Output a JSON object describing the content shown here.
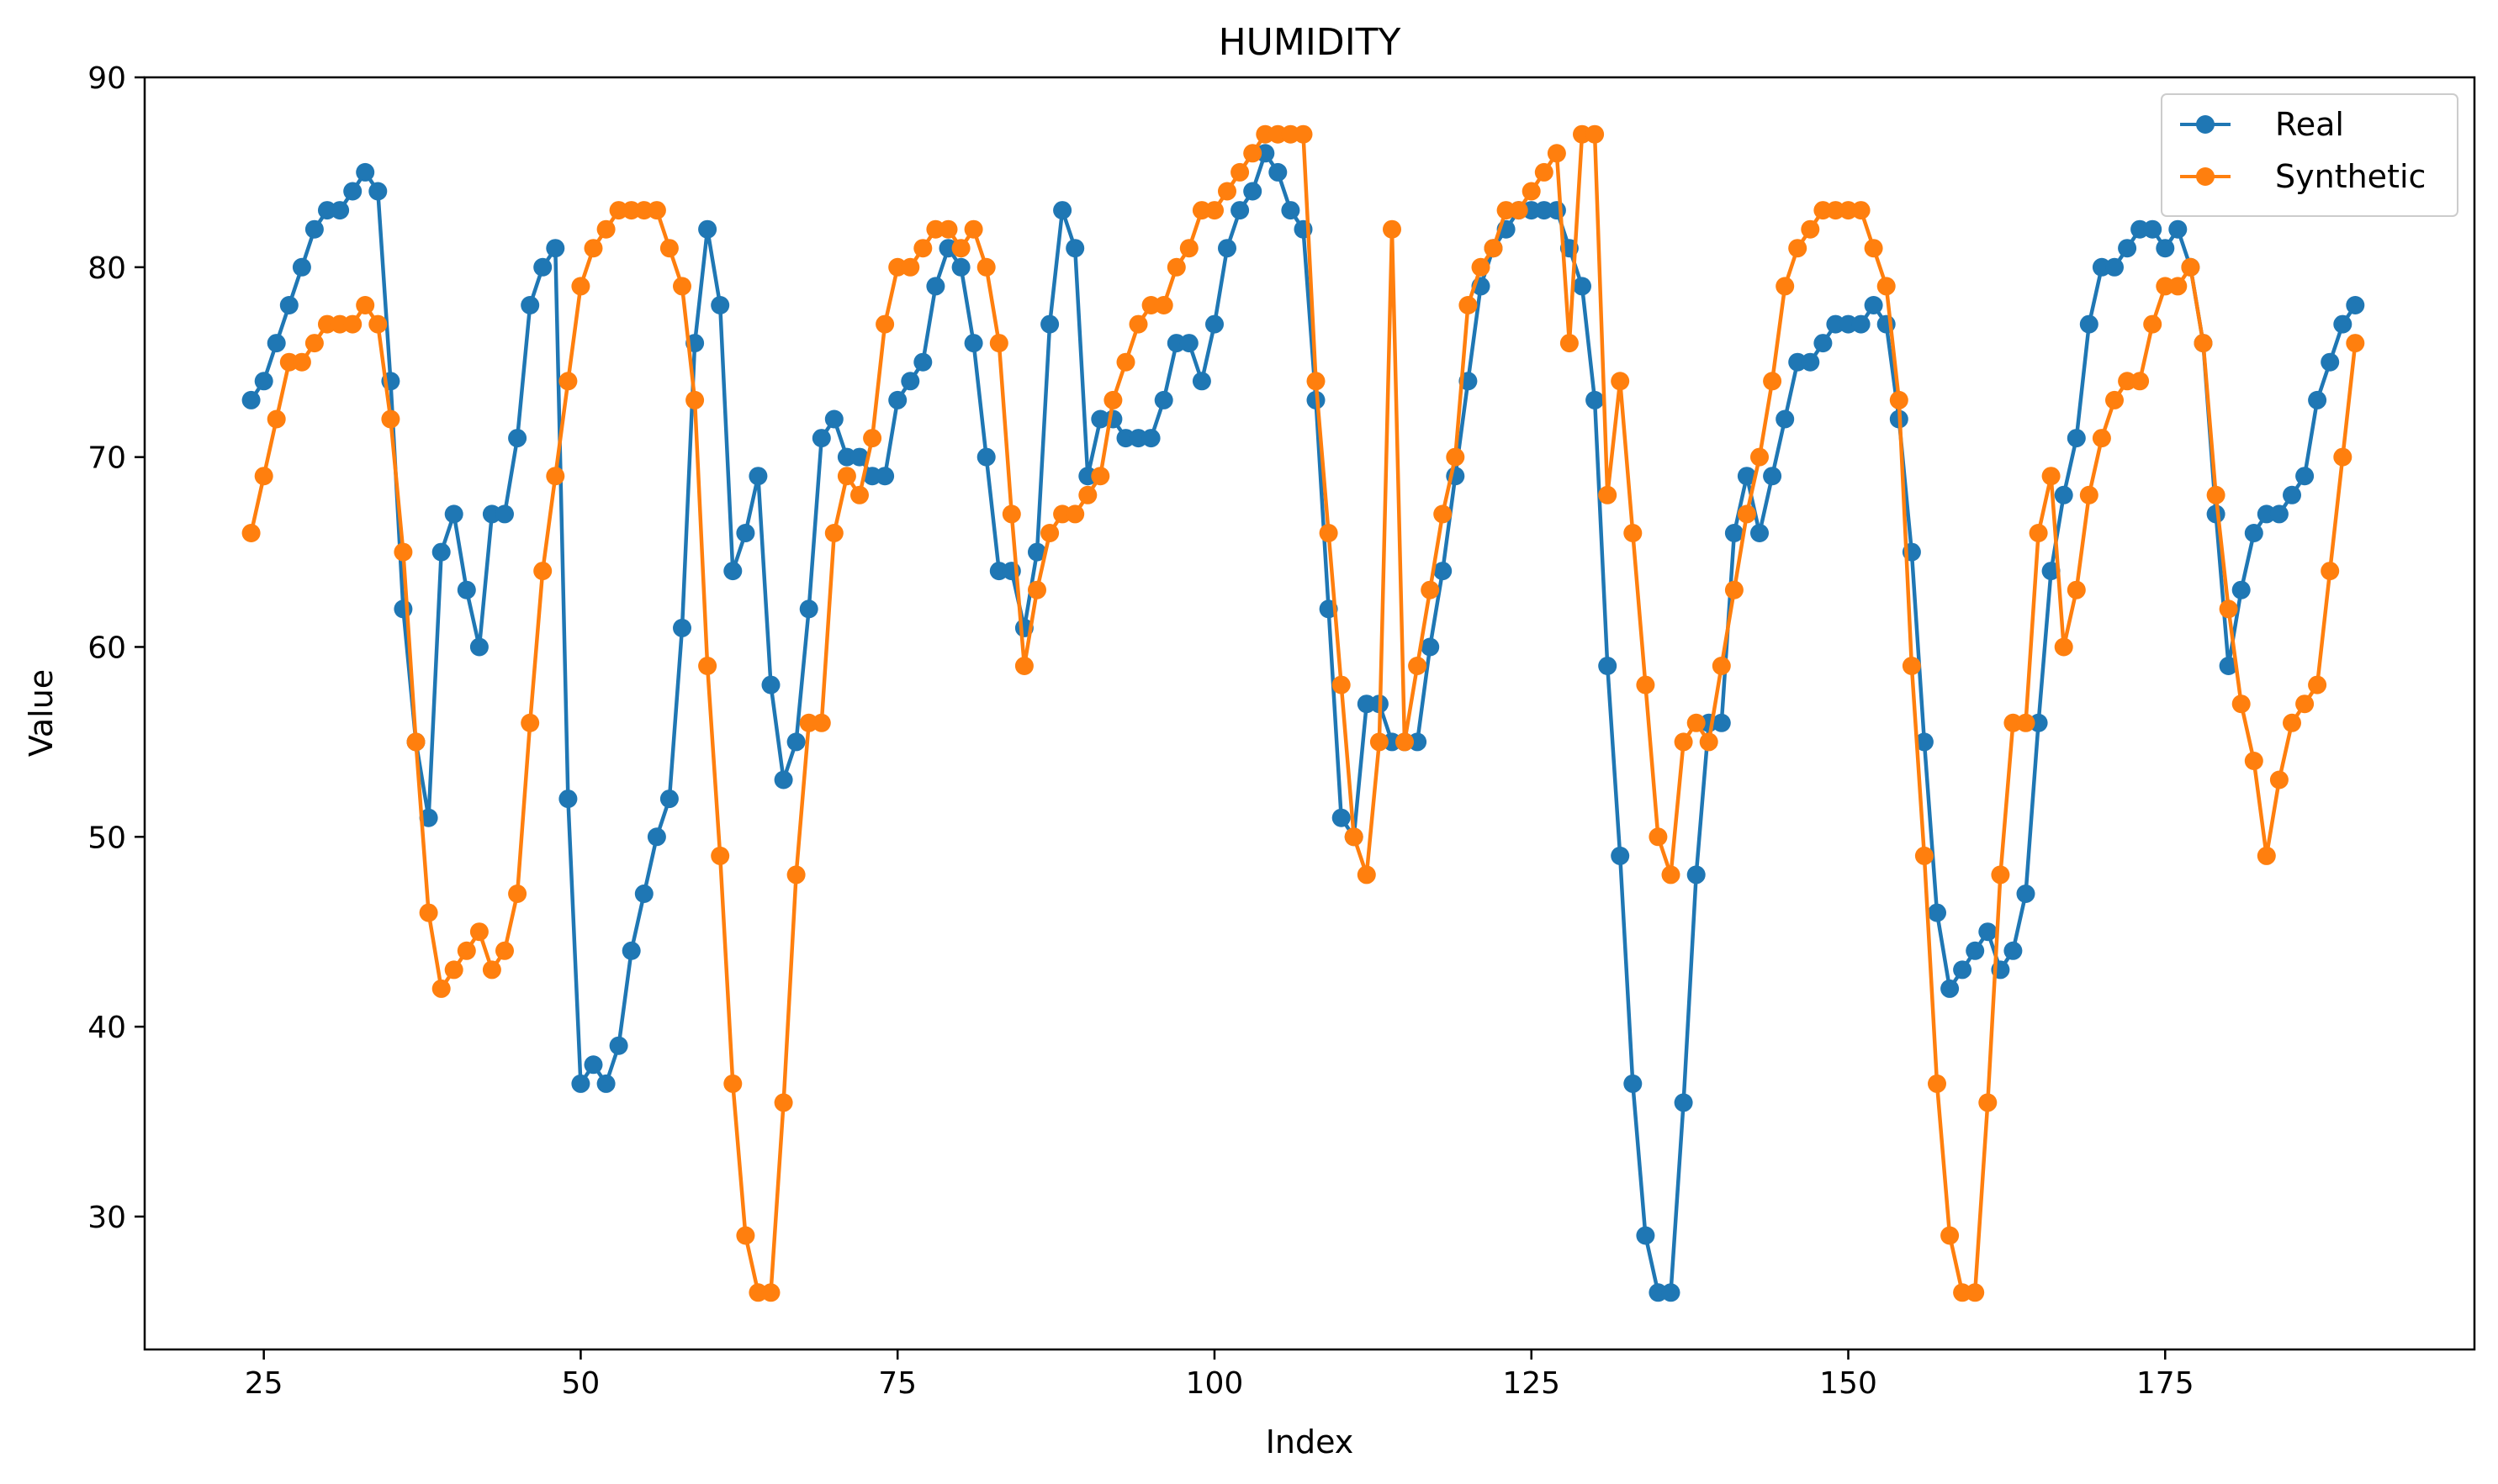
{
  "chart_data": {
    "type": "line",
    "title": "HUMIDITY",
    "xlabel": "Index",
    "ylabel": "Value",
    "xlim": [
      15.6,
      199.4
    ],
    "ylim": [
      23,
      90
    ],
    "xticks": [
      25,
      50,
      75,
      100,
      125,
      150,
      175
    ],
    "yticks": [
      30,
      40,
      50,
      60,
      70,
      80,
      90
    ],
    "grid": false,
    "legend_position": "top-right",
    "marker": "circle",
    "x_start": 24,
    "series": [
      {
        "name": "Real",
        "color": "#1f77b4",
        "values": [
          73,
          74,
          76,
          78,
          80,
          82,
          83,
          83,
          84,
          85,
          84,
          74,
          62,
          55,
          51,
          65,
          67,
          63,
          60,
          67,
          67,
          71,
          78,
          80,
          81,
          52,
          37,
          38,
          37,
          39,
          44,
          47,
          50,
          52,
          61,
          76,
          82,
          78,
          64,
          66,
          69,
          58,
          53,
          55,
          62,
          71,
          72,
          70,
          70,
          69,
          69,
          73,
          74,
          75,
          79,
          81,
          80,
          76,
          70,
          64,
          64,
          61,
          65,
          77,
          83,
          81,
          69,
          72,
          72,
          71,
          71,
          71,
          73,
          76,
          76,
          74,
          77,
          81,
          83,
          84,
          86,
          85,
          83,
          82,
          73,
          62,
          51,
          50,
          57,
          57,
          55,
          55,
          55,
          60,
          64,
          69,
          74,
          79,
          81,
          82,
          83,
          83,
          83,
          83,
          81,
          79,
          73,
          59,
          49,
          37,
          29,
          26,
          26,
          36,
          48,
          56,
          56,
          66,
          69,
          66,
          69,
          72,
          75,
          75,
          76,
          77,
          77,
          77,
          78,
          77,
          72,
          65,
          55,
          46,
          42,
          43,
          44,
          45,
          43,
          44,
          47,
          56,
          64,
          68,
          71,
          77,
          80,
          80,
          81,
          82,
          82,
          81,
          82,
          80,
          76,
          67,
          59,
          63,
          66,
          67,
          67,
          68,
          69,
          73,
          75,
          77,
          78
        ]
      },
      {
        "name": "Synthetic",
        "color": "#ff7f0e",
        "values": [
          66,
          69,
          72,
          75,
          75,
          76,
          77,
          77,
          77,
          78,
          77,
          72,
          65,
          55,
          46,
          42,
          43,
          44,
          45,
          43,
          44,
          47,
          56,
          64,
          69,
          74,
          79,
          81,
          82,
          83,
          83,
          83,
          83,
          81,
          79,
          73,
          59,
          49,
          37,
          29,
          26,
          26,
          36,
          48,
          56,
          56,
          66,
          69,
          68,
          71,
          77,
          80,
          80,
          81,
          82,
          82,
          81,
          82,
          80,
          76,
          67,
          59,
          63,
          66,
          67,
          67,
          68,
          69,
          73,
          75,
          77,
          78,
          78,
          80,
          81,
          83,
          83,
          84,
          85,
          86,
          87,
          87,
          87,
          87,
          74,
          66,
          58,
          50,
          48,
          55,
          82,
          55,
          59,
          63,
          67,
          70,
          78,
          80,
          81,
          83,
          83,
          84,
          85,
          86,
          76,
          87,
          87,
          68,
          74,
          66,
          58,
          50,
          48,
          55,
          56,
          55,
          59,
          63,
          67,
          70,
          74,
          79,
          81,
          82,
          83,
          83,
          83,
          83,
          81,
          79,
          73,
          59,
          49,
          37,
          29,
          26,
          26,
          36,
          48,
          56,
          56,
          66,
          69,
          60,
          63,
          68,
          71,
          73,
          74,
          74,
          77,
          79,
          79,
          80,
          76,
          68,
          62,
          57,
          54,
          49,
          53,
          56,
          57,
          58,
          64,
          70,
          76
        ]
      }
    ]
  }
}
